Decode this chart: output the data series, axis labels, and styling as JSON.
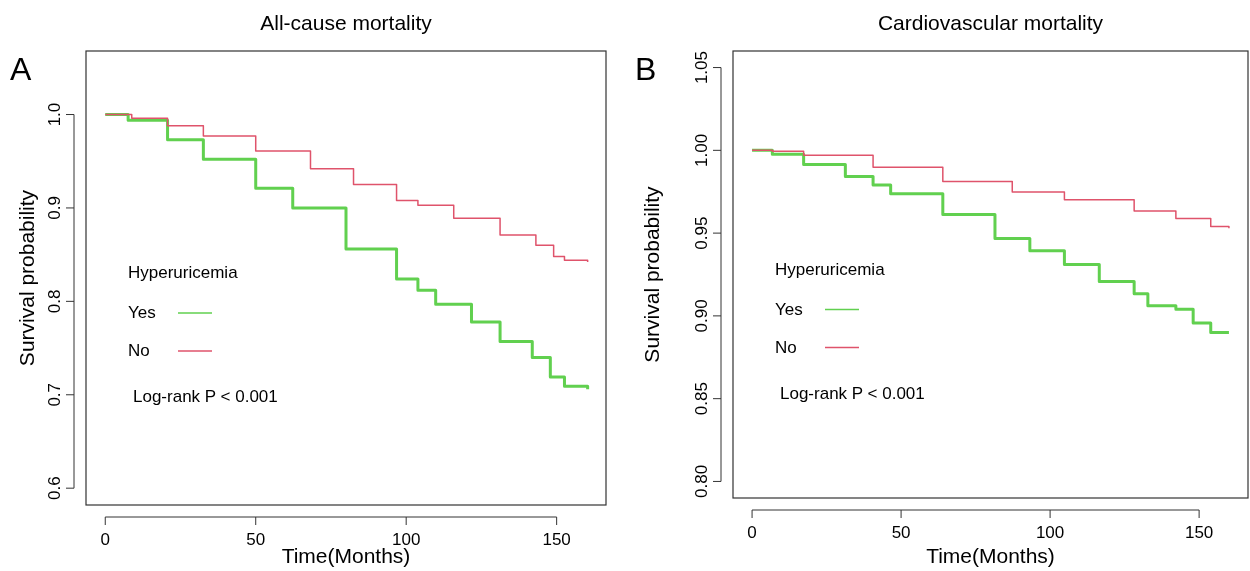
{
  "chart_data": [
    {
      "type": "step",
      "title": "All-cause mortality",
      "xlabel": "Time(Months)",
      "ylabel": "Survival probability",
      "legend_title": "Hyperuricemia",
      "legend": "center left",
      "annotations": [
        "A",
        "Log-rank P < 0.001"
      ],
      "xlim": [
        -6.4,
        166.4
      ],
      "xticks": [
        0,
        50,
        100,
        150
      ],
      "ylim": [
        0.582,
        1.068
      ],
      "yticks": [
        {
          "value": 0.6,
          "label": "0.6"
        },
        {
          "value": 0.7,
          "label": "0.7"
        },
        {
          "value": 0.8,
          "label": "0.8"
        },
        {
          "value": 0.9,
          "label": "0.9"
        },
        {
          "value": 1,
          "label": "1.0"
        }
      ],
      "series": [
        {
          "name": "Yes",
          "color": "#61d04f",
          "x": [
            0,
            7.6,
            20.7,
            32.6,
            50,
            62.3,
            80,
            96.8,
            103.9,
            109.8,
            121.7,
            131.2,
            141.9,
            147.9,
            152.6,
            160.3
          ],
          "values": [
            1,
            0.994,
            0.973,
            0.952,
            0.921,
            0.9,
            0.856,
            0.824,
            0.812,
            0.797,
            0.778,
            0.757,
            0.74,
            0.719,
            0.709,
            0.706
          ]
        },
        {
          "name": "No",
          "color": "#df536b",
          "x": [
            0,
            8.8,
            20.7,
            32.6,
            50,
            68.2,
            82.5,
            96.8,
            103.9,
            115.8,
            131.2,
            143.1,
            149,
            152.6,
            160.3
          ],
          "values": [
            1,
            0.996,
            0.988,
            0.977,
            0.961,
            0.942,
            0.925,
            0.908,
            0.903,
            0.889,
            0.871,
            0.86,
            0.848,
            0.844,
            0.842
          ]
        }
      ]
    },
    {
      "type": "step",
      "title": "Cardiovascular mortality",
      "xlabel": "Time(Months)",
      "ylabel": "Survival probability",
      "legend_title": "Hyperuricemia",
      "legend": "center left",
      "annotations": [
        "B",
        "Log-rank P < 0.001"
      ],
      "xlim": [
        -6.4,
        166.4
      ],
      "xticks": [
        0,
        50,
        100,
        150
      ],
      "ylim": [
        0.79,
        1.06
      ],
      "yticks": [
        {
          "value": 0.8,
          "label": "0.80"
        },
        {
          "value": 0.85,
          "label": "0.85"
        },
        {
          "value": 0.9,
          "label": "0.90"
        },
        {
          "value": 0.95,
          "label": "0.95"
        },
        {
          "value": 1,
          "label": "1.00"
        },
        {
          "value": 1.05,
          "label": "1.05"
        }
      ],
      "series": [
        {
          "name": "Yes",
          "color": "#61d04f",
          "x": [
            0,
            6.8,
            17.3,
            31.3,
            40.6,
            46.5,
            64,
            81.5,
            93.2,
            104.8,
            116.5,
            128.2,
            132.8,
            142.2,
            148,
            153.9,
            160
          ],
          "values": [
            1,
            0.9977,
            0.9915,
            0.9842,
            0.979,
            0.9738,
            0.9613,
            0.9467,
            0.9394,
            0.9311,
            0.9207,
            0.9134,
            0.9061,
            0.904,
            0.8957,
            0.8899,
            0.8899
          ]
        },
        {
          "name": "No",
          "color": "#df536b",
          "x": [
            0,
            6.8,
            17.3,
            40.6,
            64,
            87.3,
            104.8,
            128.2,
            142.2,
            153.9,
            160
          ],
          "values": [
            1,
            0.9994,
            0.9971,
            0.9898,
            0.9811,
            0.9748,
            0.9702,
            0.9634,
            0.9588,
            0.954,
            0.953
          ]
        }
      ]
    }
  ]
}
